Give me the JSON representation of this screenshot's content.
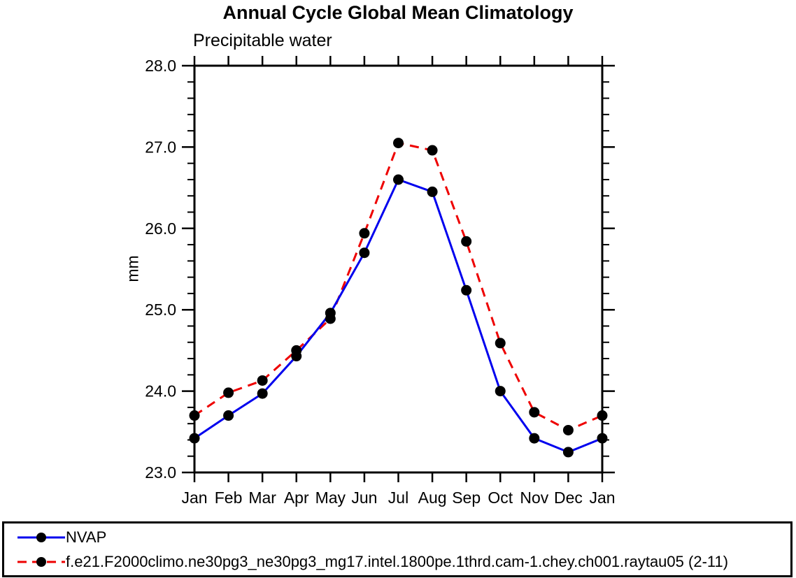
{
  "title": "Annual Cycle Global Mean Climatology",
  "colors": {
    "obs_line": "#0000ee",
    "model_line": "#ee0000",
    "marker": "#000000",
    "frame": "#000000",
    "background": "#ffffff"
  },
  "legend": {
    "position": "bottom",
    "entries": [
      {
        "label": "NVAP",
        "line_style": "solid",
        "color": "#0000ee",
        "marker": "circle"
      },
      {
        "label": "f.e21.F2000climo.ne30pg3_ne30pg3_mg17.intel.1800pe.1thrd.cam-1.chey.ch001.raytau05 (2-11)",
        "line_style": "dashed",
        "color": "#ee0000",
        "marker": "circle"
      }
    ]
  },
  "chart_data": {
    "type": "line",
    "title": "Annual Cycle Global Mean Climatology",
    "subtitle": "Precipitable water",
    "xlabel": "",
    "ylabel": "mm",
    "categories": [
      "Jan",
      "Feb",
      "Mar",
      "Apr",
      "May",
      "Jun",
      "Jul",
      "Aug",
      "Sep",
      "Oct",
      "Nov",
      "Dec",
      "Jan"
    ],
    "ylim": [
      23.0,
      28.0
    ],
    "yticks": [
      23.0,
      24.0,
      25.0,
      26.0,
      27.0,
      28.0
    ],
    "minor_tick_step": 0.2,
    "grid": false,
    "legend_position": "bottom",
    "series": [
      {
        "name": "NVAP",
        "color": "#0000ee",
        "style": "solid",
        "marker": "circle",
        "values": [
          23.42,
          23.7,
          23.97,
          24.43,
          24.96,
          25.7,
          26.6,
          26.45,
          25.24,
          24.0,
          23.42,
          23.25,
          23.42
        ]
      },
      {
        "name": "f.e21.F2000climo.ne30pg3_ne30pg3_mg17.intel.1800pe.1thrd.cam-1.chey.ch001.raytau05 (2-11)",
        "color": "#ee0000",
        "style": "dashed",
        "marker": "circle",
        "values": [
          23.7,
          23.98,
          24.13,
          24.5,
          24.89,
          25.94,
          27.05,
          26.96,
          25.84,
          24.59,
          23.74,
          23.52,
          23.7
        ]
      }
    ]
  }
}
